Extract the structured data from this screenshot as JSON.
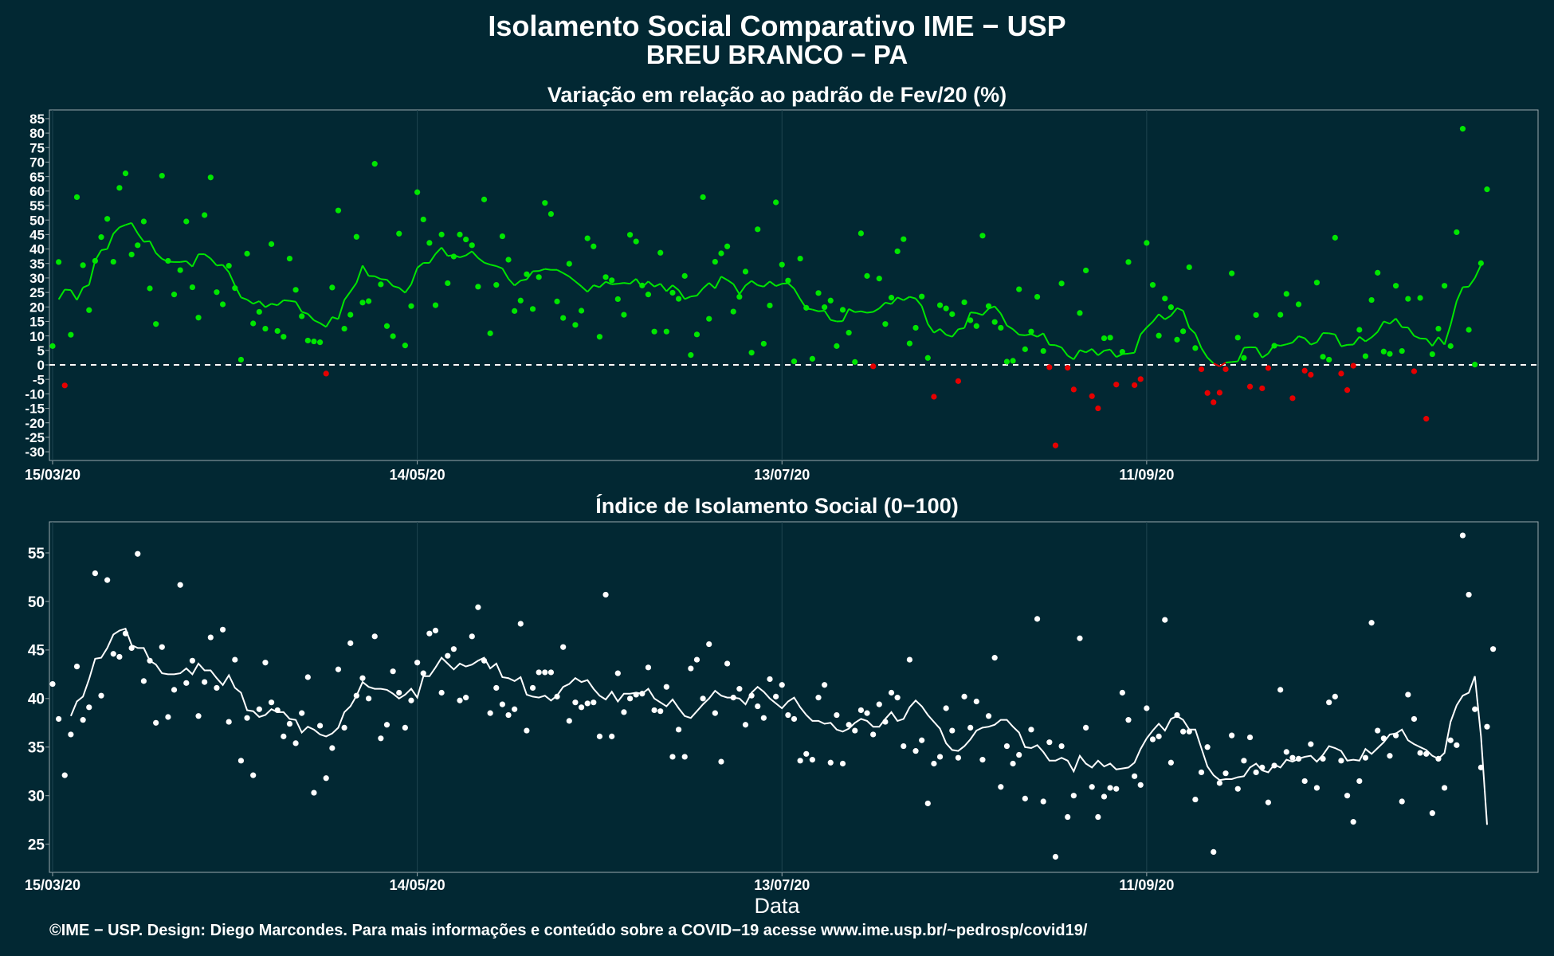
{
  "title": "Isolamento Social Comparativo IME − USP",
  "subtitle": "BREU BRANCO − PA",
  "xlabel": "Data",
  "footer": "©IME − USP. Design: Diego Marcondes. Para mais informações e conteúdo sobre a COVID−19 acesse www.ime.usp.br/~pedrosp/covid19/",
  "colors": {
    "background": "#022833",
    "positive": "#00e600",
    "negative": "#e60000",
    "white": "#ffffff",
    "grid": "#1f4550"
  },
  "chart_data": [
    {
      "type": "scatter",
      "title": "Variação em relação ao padrão de Fev/20 (%)",
      "x_start": "2020-03-15",
      "x_tick_labels": [
        "15/03/20",
        "14/05/20",
        "13/07/20",
        "11/09/20"
      ],
      "y_ticks": [
        -30,
        -25,
        -20,
        -15,
        -10,
        -5,
        0,
        5,
        10,
        15,
        20,
        25,
        30,
        35,
        40,
        45,
        50,
        55,
        60,
        65,
        70,
        75,
        80,
        85
      ],
      "ylim": [
        -33,
        88
      ],
      "reference_line": 0,
      "point_color_rule": "green if >= 0, red if < 0",
      "points": [
        6.5,
        35.5,
        -7.1,
        10.4,
        57.9,
        34.4,
        18.9,
        35.9,
        44.1,
        50.4,
        35.6,
        61.1,
        66.1,
        38.1,
        41.3,
        49.5,
        26.4,
        14.1,
        65.3,
        35.9,
        24.3,
        32.7,
        49.5,
        26.8,
        16.3,
        51.7,
        64.7,
        25.1,
        20.9,
        34.2,
        26.5,
        1.8,
        38.4,
        14.3,
        18.3,
        12.5,
        41.7,
        11.7,
        9.7,
        36.7,
        25.9,
        16.8,
        8.4,
        8.1,
        7.8,
        -3.0,
        26.7,
        53.3,
        12.5,
        17.3,
        44.2,
        21.5,
        22.0,
        69.4,
        27.8,
        13.4,
        9.9,
        45.3,
        6.7,
        20.3,
        59.6,
        50.2,
        42.1,
        20.6,
        45.0,
        28.2,
        37.4,
        45.0,
        43.3,
        41.3,
        27.0,
        57.1,
        10.9,
        27.6,
        44.4,
        36.3,
        18.6,
        22.2,
        31.3,
        19.3,
        30.3,
        55.9,
        52.1,
        21.9,
        16.2,
        34.9,
        13.8,
        18.7,
        43.7,
        40.9,
        9.7,
        30.3,
        29.2,
        22.7,
        17.3,
        44.9,
        42.6,
        27.4,
        24.3,
        11.5,
        38.7,
        11.5,
        24.9,
        22.8,
        30.7,
        3.4,
        10.5,
        57.9,
        15.9,
        35.6,
        38.5,
        40.9,
        18.4,
        23.5,
        32.2,
        4.2,
        46.8,
        7.3,
        20.5,
        56.1,
        34.6,
        29.1,
        1.2,
        36.7,
        19.7,
        2.1,
        24.8,
        19.9,
        22.2,
        6.5,
        19.0,
        11.1,
        1.0,
        45.4,
        30.7,
        -0.5,
        29.8,
        14.1,
        23.2,
        39.2,
        43.4,
        7.4,
        12.8,
        23.6,
        2.4,
        -11.0,
        20.6,
        19.5,
        17.5,
        -5.6,
        21.6,
        15.4,
        13.4,
        44.6,
        20.3,
        14.8,
        12.8,
        1.1,
        1.4,
        26.1,
        5.4,
        11.5,
        23.5,
        4.8,
        -0.8,
        -27.8,
        28.1,
        -1.0,
        -8.5,
        17.9,
        32.6,
        -10.8,
        -15.0,
        9.2,
        9.4,
        -6.8,
        4.5,
        35.5,
        -7.0,
        -4.9,
        42.1,
        27.6,
        10.1,
        22.9,
        19.9,
        8.7,
        11.6,
        33.7,
        5.8,
        -1.5,
        -9.7,
        -12.9,
        -9.6,
        -1.5,
        31.6,
        9.4,
        2.4,
        -7.5,
        17.2,
        -8.1,
        -1.1,
        6.6,
        17.3,
        24.5,
        -11.5,
        20.9,
        -2.0,
        -3.4,
        28.4,
        2.8,
        1.8,
        43.9,
        -3.0,
        -8.7,
        -0.3,
        12.1,
        3.0,
        22.4,
        31.8,
        4.6,
        3.8,
        27.3,
        4.8,
        22.8,
        -2.2,
        23.1,
        -18.6,
        3.7,
        12.5,
        27.3,
        6.5,
        45.8,
        81.5,
        12.1,
        0.1,
        35.1,
        60.6
      ],
      "moving_average": [
        22.6,
        26.0,
        25.8,
        22.4,
        26.7,
        27.6,
        36.0,
        39.6,
        40.0,
        45.3,
        47.5,
        48.3,
        49.0,
        45.4,
        42.5,
        42.7,
        38.6,
        36.6,
        35.6,
        35.5,
        35.5,
        35.8,
        33.9,
        38.2,
        38.2,
        36.7,
        34.3,
        34.5,
        32.0,
        27.4,
        23.3,
        22.5,
        21.1,
        22.0,
        19.9,
        21.1,
        20.6,
        22.3,
        22.1,
        21.8,
        18.3,
        17.6,
        15.4,
        14.4,
        13.1,
        16.5,
        15.8,
        22.4,
        25.3,
        28.3,
        34.3,
        30.7,
        30.6,
        29.6,
        29.4,
        27.2,
        26.6,
        24.9,
        27.8,
        33.5,
        35.2,
        35.2,
        38.3,
        40.5,
        37.6,
        37.9,
        37.1,
        37.8,
        39.2,
        36.9,
        35.3,
        34.6,
        34.1,
        33.3,
        29.7,
        27.4,
        29.1,
        29.5,
        32.3,
        32.4,
        33.1,
        32.8,
        32.8,
        31.7,
        30.5,
        28.8,
        27.1,
        25.2,
        27.5,
        26.8,
        28.7,
        27.8,
        28.0,
        28.3,
        28.0,
        29.7,
        26.8,
        28.8,
        27.0,
        28.0,
        25.4,
        27.5,
        25.8,
        22.7,
        23.6,
        23.9,
        26.4,
        28.3,
        26.4,
        30.5,
        29.3,
        27.9,
        24.4,
        27.4,
        29.0,
        27.5,
        27.0,
        28.8,
        27.2,
        28.0,
        28.2,
        26.3,
        22.7,
        19.5,
        19.1,
        18.5,
        18.7,
        15.5,
        15.0,
        15.1,
        19.3,
        18.2,
        18.5,
        18.0,
        18.3,
        19.5,
        21.5,
        21.0,
        23.3,
        22.3,
        23.5,
        22.9,
        20.3,
        14.1,
        11.1,
        12.4,
        10.4,
        9.7,
        12.3,
        12.7,
        18.1,
        17.9,
        17.2,
        19.4,
        20.2,
        17.7,
        13.6,
        12.3,
        10.4,
        10.2,
        10.6,
        9.7,
        10.9,
        6.9,
        6.8,
        6.0,
        3.2,
        1.9,
        5.1,
        4.3,
        5.5,
        3.3,
        4.9,
        5.3,
        2.7,
        3.7,
        3.9,
        4.2,
        10.5,
        12.9,
        14.9,
        17.5,
        15.7,
        17.0,
        19.6,
        18.7,
        12.8,
        10.8,
        5.8,
        2.5,
        0.5,
        -0.5,
        0.8,
        1.0,
        1.2,
        5.9,
        6.1,
        6.0,
        2.5,
        3.9,
        7.0,
        6.6,
        7.1,
        7.7,
        9.9,
        9.2,
        7.0,
        7.8,
        11.0,
        10.9,
        10.5,
        6.4,
        6.9,
        7.0,
        9.7,
        8.1,
        9.5,
        11.4,
        15.0,
        14.2,
        16.0,
        13.0,
        12.9,
        10.0,
        9.1,
        9.0,
        6.5,
        9.6,
        7.0,
        13.8,
        22.0,
        26.8,
        27.0,
        30.0,
        34.5
      ],
      "ma_offset": 1
    },
    {
      "type": "scatter",
      "title": "Índice de Isolamento Social (0−100)",
      "x_start": "2020-03-15",
      "x_tick_labels": [
        "15/03/20",
        "14/05/20",
        "13/07/20",
        "11/09/20"
      ],
      "y_ticks": [
        25,
        30,
        35,
        40,
        45,
        50,
        55
      ],
      "ylim": [
        22.1,
        58.2
      ],
      "points": [
        41.5,
        37.9,
        32.1,
        36.3,
        43.3,
        37.8,
        39.1,
        52.9,
        40.3,
        52.2,
        44.6,
        44.3,
        46.7,
        45.2,
        54.9,
        41.8,
        43.9,
        37.5,
        45.3,
        38.1,
        40.9,
        51.7,
        41.6,
        43.9,
        38.2,
        41.7,
        46.3,
        41.1,
        47.1,
        37.6,
        44.0,
        33.6,
        38.0,
        32.1,
        38.9,
        43.7,
        39.6,
        38.8,
        36.1,
        37.4,
        35.4,
        38.5,
        42.2,
        30.3,
        37.2,
        31.8,
        34.9,
        43.0,
        37.0,
        45.7,
        40.3,
        42.1,
        40.0,
        46.4,
        35.9,
        37.3,
        42.8,
        40.6,
        37.0,
        39.8,
        43.7,
        42.6,
        46.7,
        47.0,
        40.6,
        44.4,
        45.1,
        39.8,
        40.1,
        46.4,
        49.4,
        43.9,
        38.5,
        41.1,
        39.4,
        38.3,
        38.9,
        47.7,
        36.7,
        41.1,
        42.7,
        42.7,
        42.7,
        40.2,
        45.3,
        37.7,
        39.6,
        39.1,
        39.5,
        39.6,
        36.1,
        50.7,
        36.1,
        42.6,
        38.6,
        40.0,
        40.4,
        40.5,
        43.2,
        38.8,
        38.7,
        41.2,
        34.0,
        36.8,
        34.0,
        43.1,
        44.0,
        40.0,
        45.6,
        38.5,
        33.5,
        43.6,
        40.1,
        41.0,
        37.3,
        40.3,
        39.2,
        38.0,
        42.0,
        40.2,
        41.4,
        38.3,
        37.9,
        33.6,
        34.3,
        33.7,
        40.1,
        41.4,
        33.4,
        38.3,
        33.3,
        37.3,
        36.7,
        38.8,
        38.5,
        36.3,
        39.4,
        37.6,
        40.6,
        40.1,
        35.1,
        44.0,
        34.6,
        35.7,
        29.2,
        33.3,
        34.0,
        39.0,
        36.7,
        33.9,
        40.2,
        37.0,
        39.7,
        33.7,
        38.2,
        44.2,
        30.9,
        35.1,
        33.3,
        34.2,
        29.7,
        36.8,
        48.2,
        29.4,
        35.5,
        23.7,
        35.1,
        27.8,
        30.0,
        46.2,
        37.0,
        30.9,
        27.8,
        29.9,
        30.8,
        30.7,
        40.6,
        37.8,
        32.0,
        31.1,
        39.0,
        35.8,
        36.1,
        48.1,
        33.4,
        38.3,
        36.6,
        36.6,
        29.6,
        32.4,
        35.0,
        24.2,
        31.3,
        32.3,
        36.2,
        30.7,
        33.6,
        36.0,
        32.4,
        32.9,
        29.3,
        33.1,
        40.9,
        34.5,
        33.9,
        33.8,
        31.5,
        35.3,
        30.8,
        33.8,
        39.6,
        40.2,
        33.6,
        30.0,
        27.3,
        31.5,
        33.9,
        47.8,
        36.7,
        35.9,
        34.1,
        36.2,
        29.4,
        40.4,
        37.9,
        34.4,
        34.3,
        28.2,
        33.8,
        30.8,
        35.7,
        35.2,
        56.8,
        50.7,
        38.9,
        32.9,
        37.1,
        45.1
      ],
      "moving_average": [
        38.2,
        39.7,
        40.2,
        42.0,
        44.1,
        44.2,
        45.2,
        46.6,
        47.0,
        47.2,
        45.5,
        45.2,
        45.2,
        43.9,
        43.5,
        42.6,
        42.5,
        42.5,
        42.6,
        43.1,
        42.5,
        43.6,
        42.9,
        42.9,
        42.1,
        41.4,
        42.4,
        41.1,
        40.6,
        38.8,
        38.7,
        38.1,
        38.3,
        38.9,
        38.6,
        38.6,
        37.9,
        37.8,
        36.5,
        37.1,
        36.8,
        36.3,
        36.1,
        36.4,
        37.0,
        38.6,
        39.2,
        40.3,
        41.7,
        41.2,
        41.0,
        41.0,
        40.9,
        40.5,
        40.0,
        40.4,
        41.0,
        40.1,
        42.3,
        42.3,
        43.2,
        44.2,
        43.6,
        43.0,
        43.6,
        43.3,
        43.5,
        43.9,
        44.2,
        43.1,
        43.6,
        42.2,
        42.1,
        41.8,
        42.2,
        40.4,
        40.2,
        40.1,
        40.3,
        39.8,
        40.3,
        41.2,
        41.5,
        42.1,
        41.7,
        41.9,
        41.0,
        40.3,
        39.9,
        40.7,
        39.7,
        40.5,
        40.5,
        40.6,
        40.5,
        41.0,
        40.0,
        39.6,
        39.2,
        39.9,
        39.0,
        38.2,
        38.0,
        38.7,
        39.4,
        40.0,
        40.8,
        40.3,
        40.1,
        40.1,
        40.0,
        39.4,
        40.6,
        41.2,
        40.7,
        40.0,
        39.5,
        39.0,
        39.7,
        40.1,
        39.1,
        38.3,
        37.7,
        37.7,
        37.4,
        37.5,
        36.8,
        36.6,
        36.9,
        37.5,
        37.9,
        37.7,
        37.1,
        37.1,
        37.9,
        38.6,
        37.7,
        37.9,
        39.1,
        39.8,
        39.2,
        38.3,
        37.6,
        36.9,
        35.4,
        34.7,
        34.6,
        35.1,
        35.8,
        36.7,
        37.0,
        37.1,
        37.3,
        37.8,
        37.8,
        37.1,
        36.5,
        35.0,
        34.9,
        35.2,
        34.5,
        33.6,
        33.6,
        33.9,
        33.6,
        32.5,
        34.1,
        33.3,
        32.9,
        33.6,
        33.0,
        33.3,
        32.7,
        32.8,
        32.9,
        33.4,
        34.8,
        35.9,
        36.7,
        37.4,
        36.7,
        37.9,
        38.2,
        37.8,
        36.8,
        36.8,
        34.9,
        33.0,
        32.1,
        31.6,
        31.7,
        31.7,
        31.9,
        32.0,
        32.9,
        33.3,
        32.6,
        32.4,
        33.2,
        32.9,
        33.7,
        33.5,
        33.8,
        34.0,
        34.1,
        33.5,
        34.2,
        35.1,
        34.9,
        34.6,
        33.6,
        33.7,
        33.6,
        34.8,
        34.3,
        34.9,
        35.5,
        36.3,
        36.4,
        36.8,
        35.7,
        35.3,
        35.0,
        34.7,
        34.1,
        33.8,
        34.4,
        37.6,
        39.3,
        40.3,
        40.6,
        42.3,
        36.1,
        27.0
      ],
      "ma_offset": 3
    }
  ]
}
